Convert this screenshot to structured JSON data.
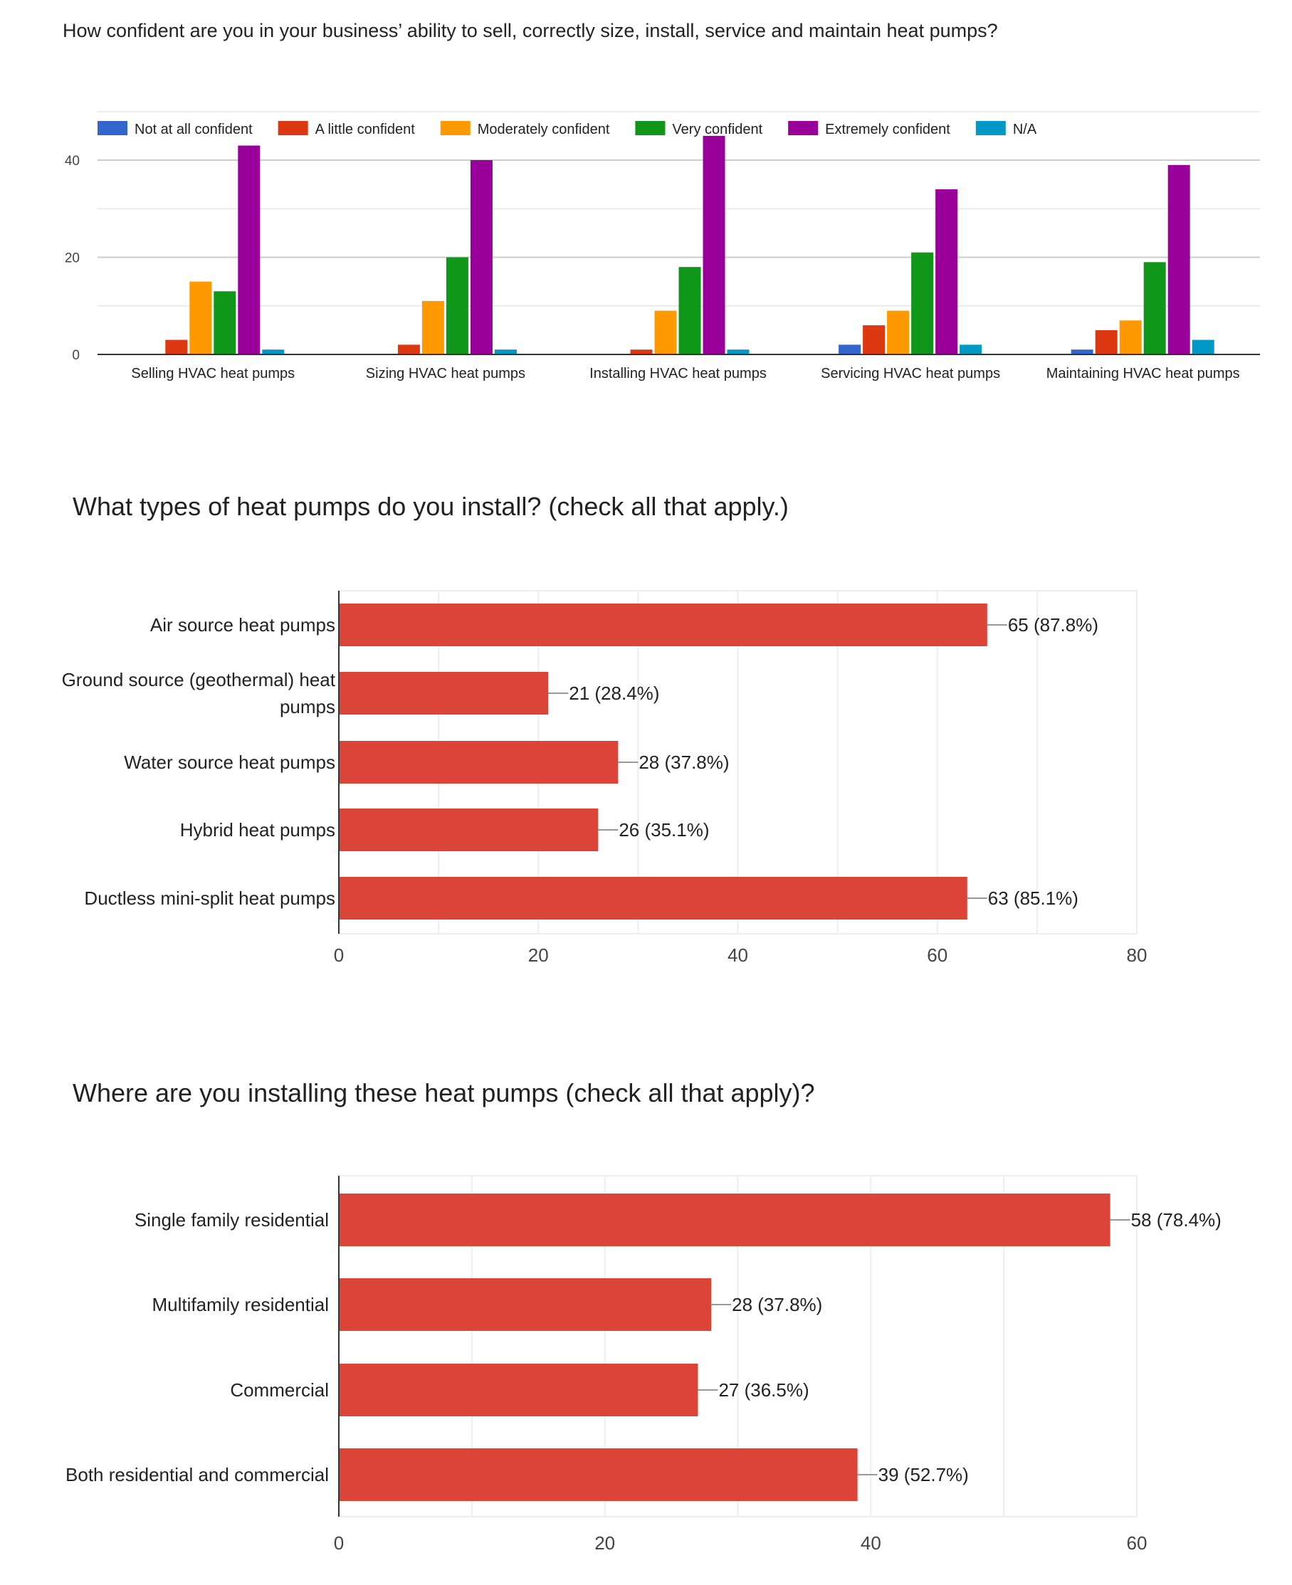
{
  "chart_data": [
    {
      "type": "bar",
      "title": "How confident are you in your business’ ability to sell, correctly size, install, service and maintain heat pumps?",
      "categories": [
        "Selling HVAC heat pumps",
        "Sizing HVAC heat pumps",
        "Installing HVAC heat pumps",
        "Servicing HVAC heat pumps",
        "Maintaining HVAC heat pumps"
      ],
      "series": [
        {
          "name": "Not at all confident",
          "color": "#3366cc",
          "values": [
            0,
            0,
            0,
            2,
            1
          ]
        },
        {
          "name": "A little confident",
          "color": "#dc3912",
          "values": [
            3,
            2,
            1,
            6,
            5
          ]
        },
        {
          "name": "Moderately confident",
          "color": "#ff9900",
          "values": [
            15,
            11,
            9,
            9,
            7
          ]
        },
        {
          "name": "Very confident",
          "color": "#109618",
          "values": [
            13,
            20,
            18,
            21,
            19
          ]
        },
        {
          "name": "Extremely confident",
          "color": "#990099",
          "values": [
            43,
            40,
            45,
            34,
            39
          ]
        },
        {
          "name": "N/A",
          "color": "#0099c6",
          "values": [
            1,
            1,
            1,
            2,
            3
          ]
        }
      ],
      "yticks": [
        "0",
        "20",
        "40"
      ],
      "ylim": [
        0,
        48
      ],
      "legend": "top",
      "grid": true,
      "xlabel": "",
      "ylabel": ""
    },
    {
      "type": "bar",
      "orientation": "horizontal",
      "title": "What types of heat pumps do you install? (check all that apply.)",
      "categories": [
        "Air source heat pumps",
        "Ground source (geothermal) heat pumps",
        "Water source heat pumps",
        "Hybrid heat pumps",
        "Ductless mini-split heat pumps"
      ],
      "category_lines": [
        [
          "Air source heat pumps"
        ],
        [
          "Ground source (geothermal) heat",
          "pumps"
        ],
        [
          "Water source heat pumps"
        ],
        [
          "Hybrid heat pumps"
        ],
        [
          "Ductless mini-split heat pumps"
        ]
      ],
      "values": [
        65,
        21,
        28,
        26,
        63
      ],
      "data_labels": [
        "65 (87.8%)",
        "21 (28.4%)",
        "28 (37.8%)",
        "26 (35.1%)",
        "63 (85.1%)"
      ],
      "color": "#db4437",
      "xticks": [
        "0",
        "20",
        "40",
        "60",
        "80"
      ],
      "xlim": [
        0,
        80
      ],
      "grid": true,
      "xlabel": "",
      "ylabel": ""
    },
    {
      "type": "bar",
      "orientation": "horizontal",
      "title": "Where are you installing these heat pumps (check all that apply)?",
      "categories": [
        "Single family residential",
        "Multifamily residential",
        "Commercial",
        "Both residential and commercial"
      ],
      "category_lines": [
        [
          "Single family residential"
        ],
        [
          "Multifamily residential"
        ],
        [
          "Commercial"
        ],
        [
          "Both residential and commercial"
        ]
      ],
      "values": [
        58,
        28,
        27,
        39
      ],
      "data_labels": [
        "58 (78.4%)",
        "28 (37.8%)",
        "27 (36.5%)",
        "39 (52.7%)"
      ],
      "color": "#db4437",
      "xticks": [
        "0",
        "20",
        "40",
        "60"
      ],
      "xlim": [
        0,
        60
      ],
      "grid": true,
      "xlabel": "",
      "ylabel": ""
    }
  ]
}
